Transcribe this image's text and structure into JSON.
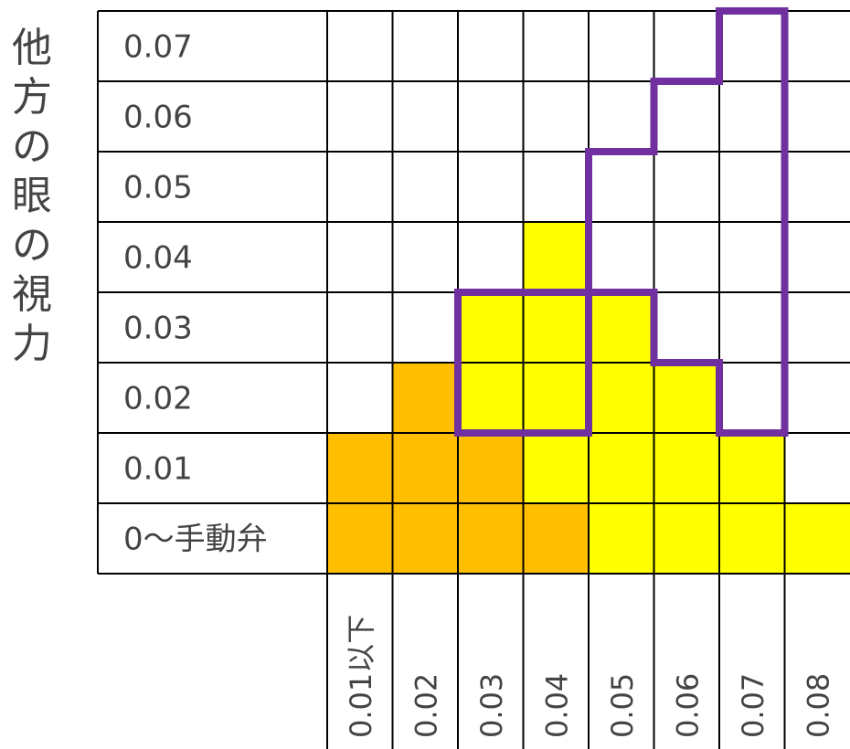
{
  "y_axis_title": "他方の眼の視力",
  "rows": [
    "0.07",
    "0.06",
    "0.05",
    "0.04",
    "0.03",
    "0.02",
    "0.01",
    "0〜手動弁"
  ],
  "columns": [
    "0.01以下",
    "0.02",
    "0.03",
    "0.04",
    "0.05",
    "0.06",
    "0.07",
    "0.08"
  ],
  "cell_fill_key": {
    "0": "none",
    "1": "orange",
    "2": "yellow"
  },
  "cells": [
    [
      0,
      0,
      0,
      0,
      0,
      0,
      0,
      0
    ],
    [
      0,
      0,
      0,
      0,
      0,
      0,
      0,
      0
    ],
    [
      0,
      0,
      0,
      0,
      0,
      0,
      0,
      0
    ],
    [
      0,
      0,
      0,
      2,
      0,
      0,
      0,
      0
    ],
    [
      0,
      0,
      2,
      2,
      2,
      0,
      0,
      0
    ],
    [
      0,
      1,
      2,
      2,
      2,
      2,
      0,
      0
    ],
    [
      1,
      1,
      1,
      2,
      2,
      2,
      2,
      0
    ],
    [
      1,
      1,
      1,
      1,
      2,
      2,
      2,
      2
    ]
  ],
  "outlined_region_by_column": [
    {
      "column": "0.03",
      "rows_from": "0.02",
      "rows_to": "0.03"
    },
    {
      "column": "0.04",
      "rows_from": "0.02",
      "rows_to": "0.03"
    },
    {
      "column": "0.05",
      "rows_from": "0.04",
      "rows_to": "0.05"
    },
    {
      "column": "0.06",
      "rows_from": "0.03",
      "rows_to": "0.06"
    },
    {
      "column": "0.07",
      "rows_from": "0.02",
      "rows_to": "0.07"
    }
  ],
  "colors": {
    "orange": "#FFBF00",
    "yellow": "#FFFF00",
    "outline": "#7030A0",
    "grid": "#000000"
  }
}
